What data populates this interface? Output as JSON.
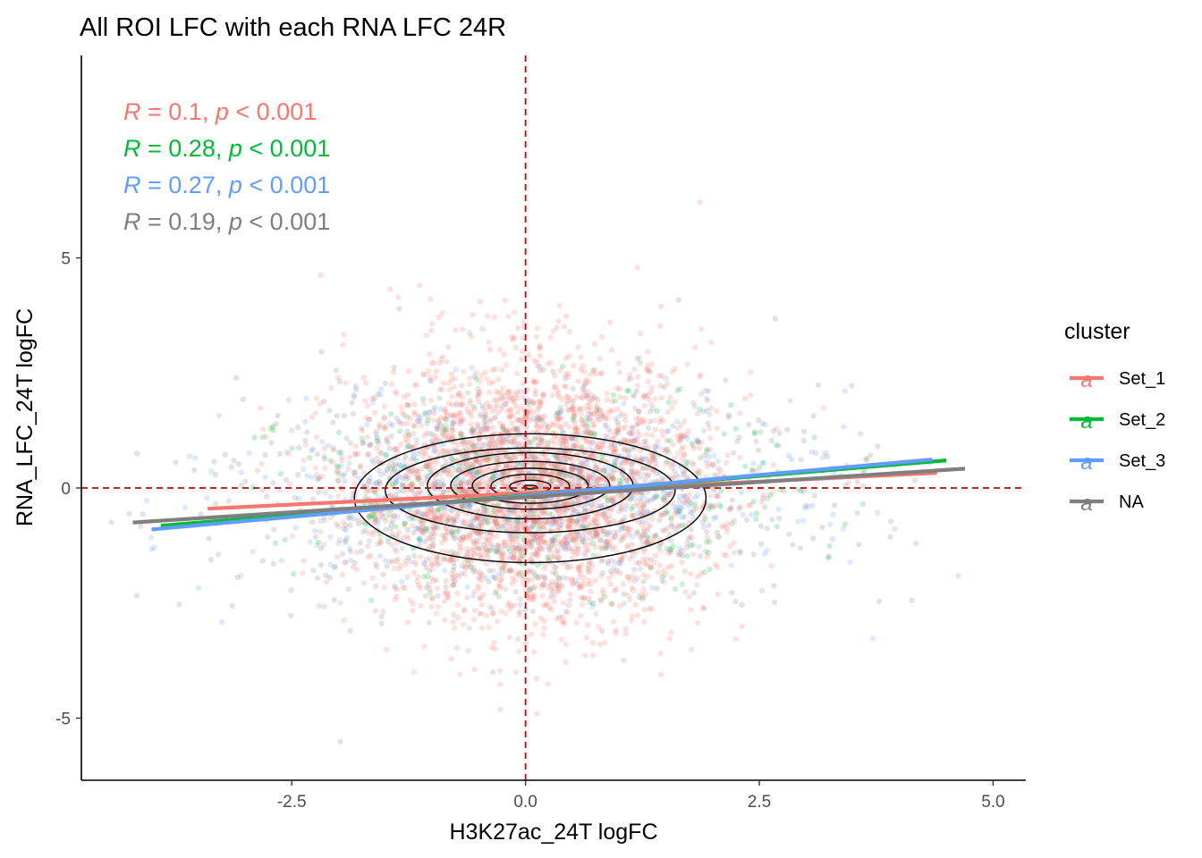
{
  "chart_data": {
    "type": "scatter",
    "title": "All ROI LFC with each RNA LFC 24R",
    "xlabel": "H3K27ac_24T logFC",
    "ylabel": "RNA_LFC_24T logFC",
    "xlim": [
      -4.75,
      5.35
    ],
    "ylim": [
      -6.35,
      9.4
    ],
    "x_ticks": [
      -2.5,
      0,
      2.5,
      5
    ],
    "x_tick_labels": [
      "-2.5",
      "0.0",
      "2.5",
      "5.0"
    ],
    "y_ticks": [
      -5,
      0,
      5
    ],
    "y_tick_labels": [
      "-5",
      "0",
      "5"
    ],
    "grid": false,
    "reference_lines": {
      "x": 0,
      "y": 0,
      "color": "#cc0000",
      "style": "dashed"
    },
    "legend": {
      "title": "cluster",
      "position": "right",
      "entries": [
        {
          "label": "Set_1",
          "glyph": "a",
          "color": "#F8766D"
        },
        {
          "label": "Set_2",
          "glyph": "a",
          "color": "#00BA38"
        },
        {
          "label": "Set_3",
          "glyph": "a",
          "color": "#619CFF"
        },
        {
          "label": "NA",
          "glyph": "a",
          "color": "#7F7F7F"
        }
      ]
    },
    "series": [
      {
        "name": "Set_1",
        "color": "#F8766D",
        "cloud": {
          "center": [
            0.05,
            0.0
          ],
          "sd": [
            0.95,
            1.45
          ],
          "n": 2600
        },
        "fit": {
          "x": [
            -3.4,
            4.4
          ],
          "y": [
            -0.45,
            0.33
          ]
        },
        "annotation": {
          "r": "0.1",
          "p": "0.001"
        }
      },
      {
        "name": "Set_2",
        "color": "#00BA38",
        "cloud": {
          "center": [
            0.15,
            -0.1
          ],
          "sd": [
            1.35,
            1.0
          ],
          "n": 320
        },
        "fit": {
          "x": [
            -3.9,
            4.5
          ],
          "y": [
            -0.82,
            0.6
          ]
        },
        "annotation": {
          "r": "0.28",
          "p": "0.001"
        }
      },
      {
        "name": "Set_3",
        "color": "#619CFF",
        "cloud": {
          "center": [
            0.0,
            -0.1
          ],
          "sd": [
            1.45,
            1.05
          ],
          "n": 650
        },
        "fit": {
          "x": [
            -4.0,
            4.35
          ],
          "y": [
            -0.9,
            0.62
          ]
        },
        "annotation": {
          "r": "0.27",
          "p": "0.001"
        }
      },
      {
        "name": "NA",
        "color": "#7F7F7F",
        "cloud": {
          "center": [
            0.0,
            -0.1
          ],
          "sd": [
            1.6,
            1.15
          ],
          "n": 900
        },
        "fit": {
          "x": [
            -4.2,
            4.7
          ],
          "y": [
            -0.75,
            0.42
          ]
        },
        "annotation": {
          "r": "0.19",
          "p": "0.001"
        }
      }
    ],
    "density_contours": {
      "center": [
        0.05,
        0.0
      ],
      "levels": [
        {
          "rx": 0.07,
          "ry": 0.04,
          "dy": 0.02
        },
        {
          "rx": 0.22,
          "ry": 0.14,
          "dy": 0.03
        },
        {
          "rx": 0.42,
          "ry": 0.26,
          "dy": 0.04
        },
        {
          "rx": 0.62,
          "ry": 0.38,
          "dy": 0.05
        },
        {
          "rx": 0.85,
          "ry": 0.52,
          "dy": 0.06
        },
        {
          "rx": 1.1,
          "ry": 0.72,
          "dy": 0.05
        },
        {
          "rx": 1.55,
          "ry": 0.92,
          "dy": -0.05
        },
        {
          "rx": 1.88,
          "ry": 1.4,
          "dy": -0.22
        }
      ]
    }
  }
}
